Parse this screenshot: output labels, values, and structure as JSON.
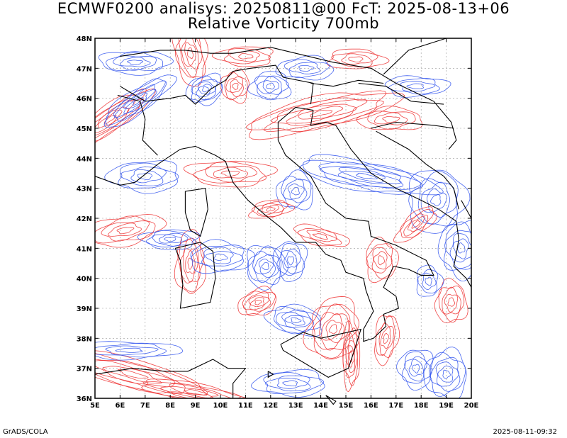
{
  "title": {
    "line1": "ECMWF0200 analisys: 20250811@00 FcT: 2025-08-13+06",
    "line2": "Relative Vorticity 700mb"
  },
  "footer": {
    "left": "GrADS/COLA",
    "right": "2025-08-11-09:32"
  },
  "map": {
    "lat_labels": [
      "48N",
      "47N",
      "46N",
      "45N",
      "44N",
      "43N",
      "42N",
      "41N",
      "40N",
      "39N",
      "38N",
      "37N",
      "36N"
    ],
    "lon_labels": [
      "5E",
      "6E",
      "7E",
      "8E",
      "9E",
      "10E",
      "11E",
      "12E",
      "13E",
      "14E",
      "15E",
      "16E",
      "17E",
      "18E",
      "19E",
      "20E"
    ],
    "lat_range": [
      36,
      48
    ],
    "lon_range": [
      5,
      20
    ],
    "colors": {
      "positive_contours": "#ee3333",
      "negative_contours": "#3355ee",
      "coastlines": "#000000",
      "grid": "#999999"
    },
    "contour_field": "relative vorticity, 700mb"
  }
}
